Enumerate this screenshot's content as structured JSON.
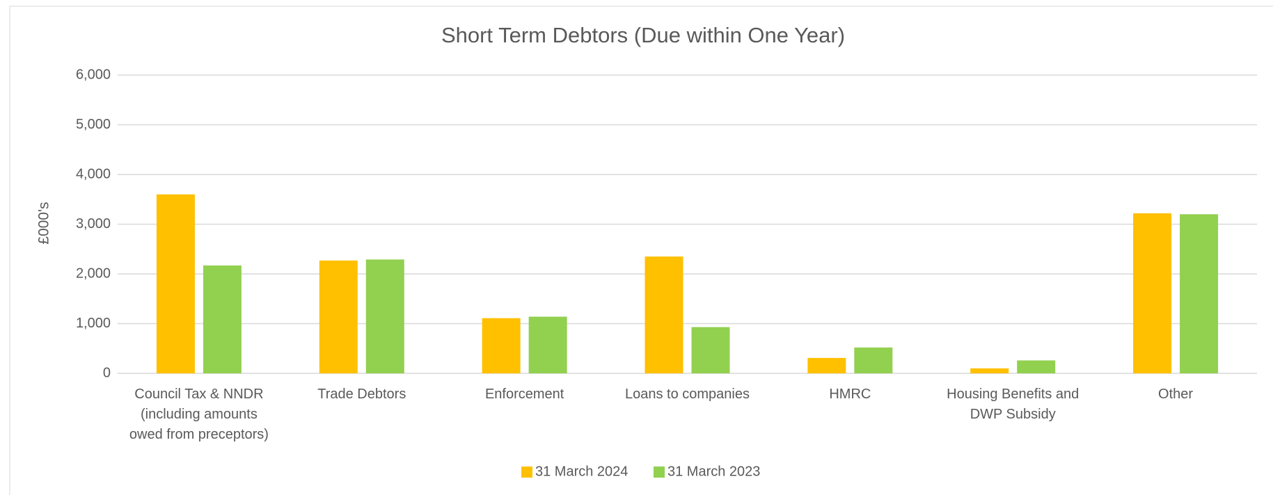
{
  "chart_data": {
    "type": "bar",
    "title": "Short Term Debtors (Due within One Year)",
    "ylabel": "£000's",
    "categories": [
      "Council Tax & NNDR (including amounts owed from preceptors)",
      "Trade Debtors",
      "Enforcement",
      "Loans to companies",
      "HMRC",
      "Housing Benefits and DWP Subsidy",
      "Other"
    ],
    "series": [
      {
        "name": "31 March 2024",
        "color": "#ffc000",
        "values": [
          3600,
          2270,
          1110,
          2350,
          310,
          100,
          3220
        ]
      },
      {
        "name": "31 March 2023",
        "color": "#92d050",
        "values": [
          2170,
          2290,
          1140,
          930,
          520,
          260,
          3200
        ]
      }
    ],
    "ylim": [
      0,
      6000
    ],
    "yticks": [
      0,
      {
        "value": 1000,
        "label": "1,000"
      },
      {
        "value": 2000,
        "label": "2,000"
      },
      {
        "value": 3000,
        "label": "3,000"
      },
      {
        "value": 4000,
        "label": "4,000"
      },
      {
        "value": 5000,
        "label": "5,000"
      },
      {
        "value": 6000,
        "label": "6,000"
      }
    ],
    "grid": true,
    "legend": "bottom"
  }
}
